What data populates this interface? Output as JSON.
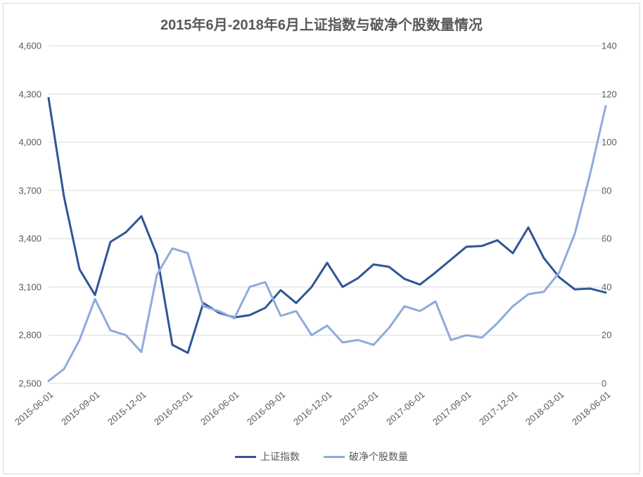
{
  "chart": {
    "type": "line",
    "title": "2015年6月-2018年6月上证指数与破净个股数量情况",
    "title_fontsize": 20,
    "title_color": "#595959",
    "background_color": "#ffffff",
    "border_color": "#d9d9d9",
    "axis_font_color": "#595959",
    "label_fontsize": 13,
    "gridline_color": "#d9d9d9",
    "gridline_width": 1,
    "x": {
      "categories": [
        "2015-06-01",
        "2015-07-01",
        "2015-08-01",
        "2015-09-01",
        "2015-10-01",
        "2015-11-01",
        "2015-12-01",
        "2016-01-01",
        "2016-02-01",
        "2016-03-01",
        "2016-04-01",
        "2016-05-01",
        "2016-06-01",
        "2016-07-01",
        "2016-08-01",
        "2016-09-01",
        "2016-10-01",
        "2016-11-01",
        "2016-12-01",
        "2017-01-01",
        "2017-02-01",
        "2017-03-01",
        "2017-04-01",
        "2017-05-01",
        "2017-06-01",
        "2017-07-01",
        "2017-08-01",
        "2017-09-01",
        "2017-10-01",
        "2017-11-01",
        "2017-12-01",
        "2018-01-01",
        "2018-02-01",
        "2018-03-01",
        "2018-04-01",
        "2018-05-01",
        "2018-06-01"
      ],
      "tick_step": 3,
      "rotation_deg": -40
    },
    "y_left": {
      "min": 2500,
      "max": 4600,
      "step": 300,
      "ticks": [
        2500,
        2800,
        3100,
        3400,
        3700,
        4000,
        4300,
        4600
      ],
      "tick_labels": [
        "2,500",
        "2,800",
        "3,100",
        "3,400",
        "3,700",
        "4,000",
        "4,300",
        "4,600"
      ]
    },
    "y_right": {
      "min": 0,
      "max": 140,
      "step": 20,
      "ticks": [
        0,
        20,
        40,
        60,
        80,
        100,
        120,
        140
      ],
      "tick_labels": [
        "0",
        "20",
        "40",
        "60",
        "80",
        "100",
        "120",
        "140"
      ]
    },
    "series": [
      {
        "name": "上证指数",
        "color": "#2f5597",
        "line_width": 3,
        "axis": "left",
        "values": [
          4275,
          3660,
          3210,
          3050,
          3380,
          3440,
          3540,
          3300,
          2740,
          2690,
          3000,
          2940,
          2910,
          2925,
          2970,
          3080,
          3000,
          3100,
          3250,
          3100,
          3155,
          3240,
          3225,
          3150,
          3115,
          3190,
          3270,
          3350,
          3355,
          3390,
          3310,
          3470,
          3280,
          3160,
          3085,
          3090,
          3065
        ]
      },
      {
        "name": "破净个股数量",
        "color": "#8faadc",
        "line_width": 3,
        "axis": "right",
        "values": [
          1,
          6,
          18,
          35,
          22,
          20,
          13,
          45,
          56,
          54,
          32,
          30,
          27,
          40,
          42,
          28,
          30,
          20,
          24,
          17,
          18,
          16,
          23,
          32,
          30,
          34,
          18,
          20,
          19,
          25,
          32,
          37,
          38,
          46,
          62,
          87,
          115
        ]
      }
    ],
    "legend": {
      "position": "bottom",
      "fontsize": 14,
      "items": [
        "上证指数",
        "破净个股数量"
      ]
    }
  }
}
